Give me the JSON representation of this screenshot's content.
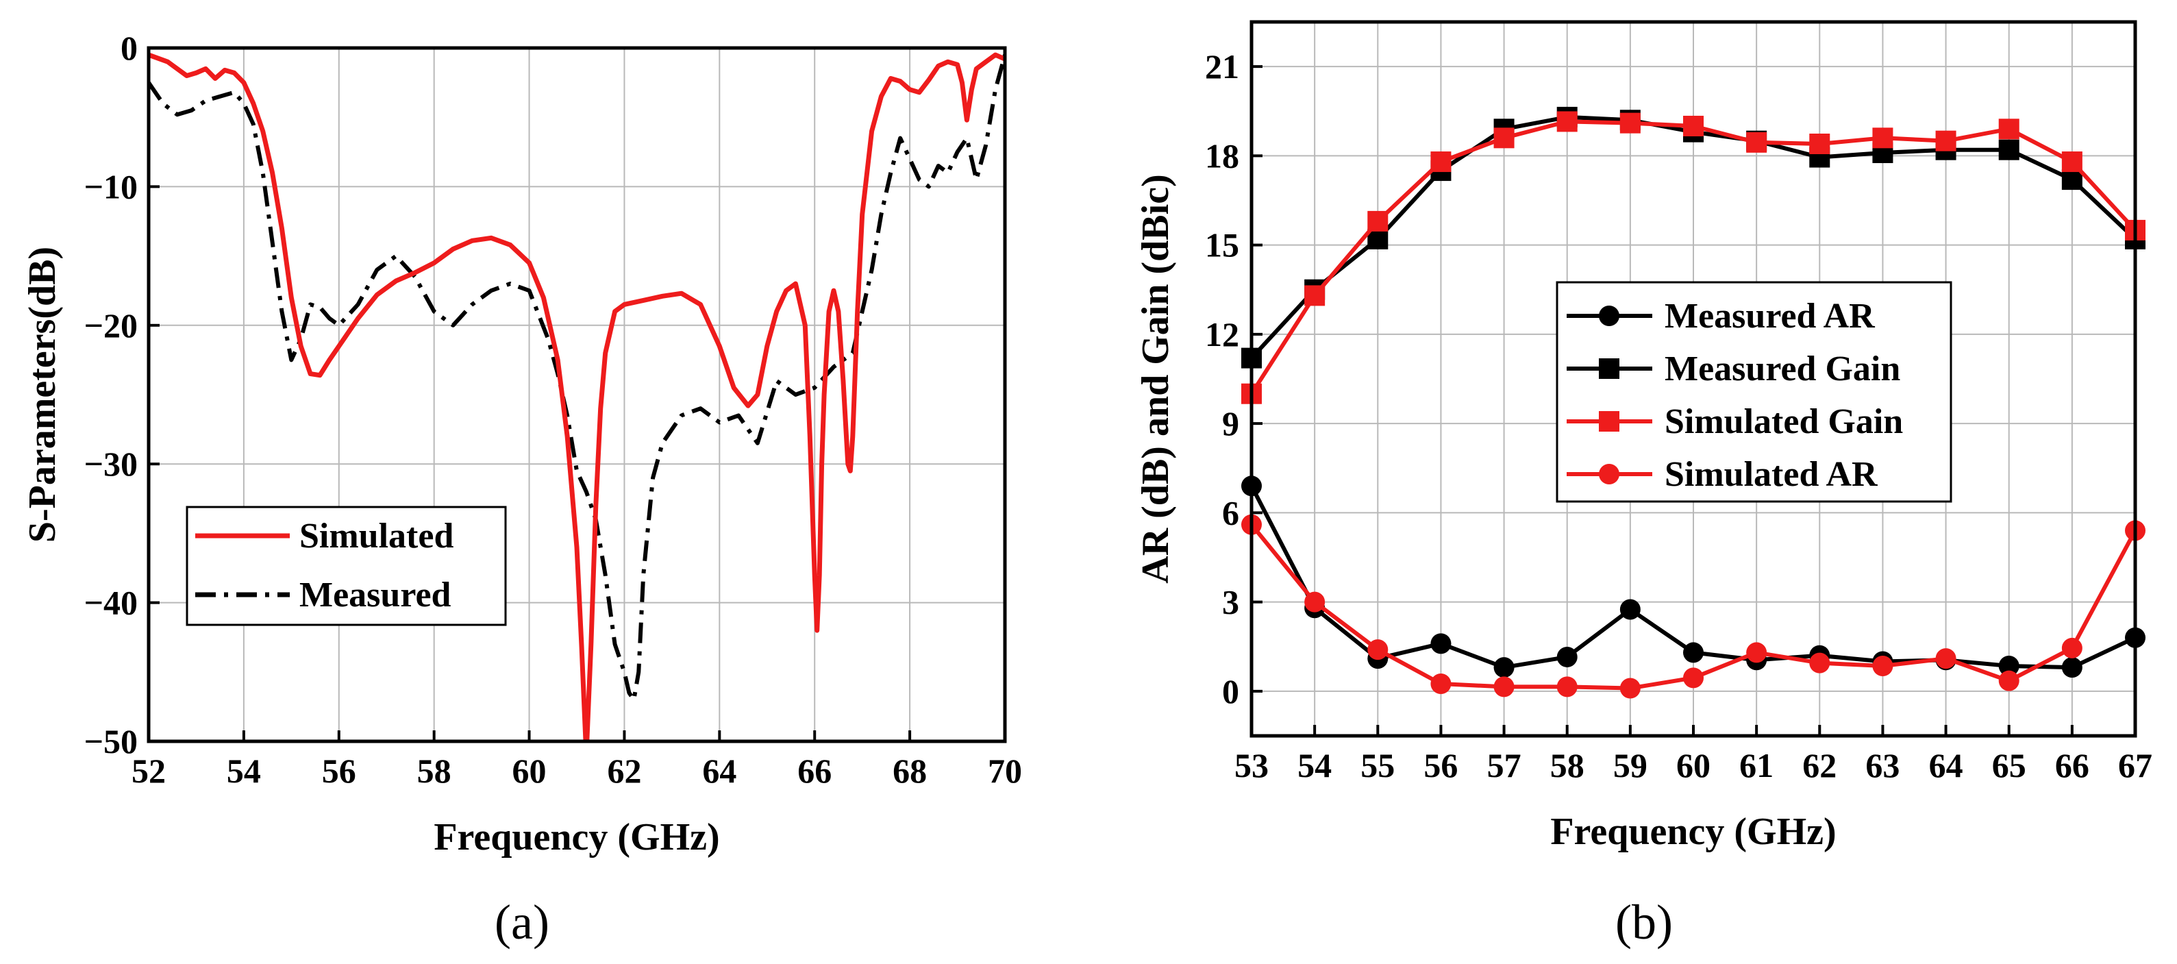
{
  "panels": [
    {
      "label": "(a)",
      "chart_data": {
        "type": "line",
        "title": "",
        "xlabel": "Frequency (GHz)",
        "ylabel": "S-Parameters(dB)",
        "xlim": [
          52,
          70
        ],
        "ylim": [
          -50,
          0
        ],
        "xticks": [
          52,
          54,
          56,
          58,
          60,
          62,
          64,
          66,
          68,
          70
        ],
        "yticks": [
          -50,
          -40,
          -30,
          -20,
          -10,
          0
        ],
        "grid": true,
        "legend_position": "bottom-left",
        "series": [
          {
            "name": "Simulated",
            "color": "#ee1c1c",
            "style": "solid",
            "x": [
              52.0,
              52.4,
              52.8,
              53.0,
              53.2,
              53.4,
              53.6,
              53.8,
              54.0,
              54.2,
              54.4,
              54.6,
              54.8,
              55.0,
              55.2,
              55.4,
              55.6,
              55.8,
              56.0,
              56.4,
              56.8,
              57.2,
              57.6,
              58.0,
              58.4,
              58.8,
              59.2,
              59.6,
              60.0,
              60.3,
              60.6,
              60.8,
              61.0,
              61.1,
              61.2,
              61.3,
              61.4,
              61.5,
              61.6,
              61.8,
              62.0,
              62.4,
              62.8,
              63.2,
              63.6,
              64.0,
              64.3,
              64.6,
              64.8,
              65.0,
              65.2,
              65.4,
              65.6,
              65.8,
              65.9,
              66.0,
              66.05,
              66.1,
              66.15,
              66.2,
              66.3,
              66.4,
              66.5,
              66.6,
              66.7,
              66.75,
              66.8,
              66.9,
              67.0,
              67.2,
              67.4,
              67.6,
              67.8,
              68.0,
              68.2,
              68.4,
              68.6,
              68.8,
              69.0,
              69.1,
              69.2,
              69.3,
              69.4,
              69.6,
              69.8,
              70.0
            ],
            "y": [
              -0.5,
              -1,
              -2,
              -1.8,
              -1.5,
              -2.2,
              -1.6,
              -1.8,
              -2.5,
              -4,
              -6,
              -9,
              -13,
              -18,
              -21.5,
              -23.5,
              -23.6,
              -22.5,
              -21.5,
              -19.5,
              -17.8,
              -16.8,
              -16.2,
              -15.5,
              -14.5,
              -13.9,
              -13.7,
              -14.2,
              -15.5,
              -18,
              -22.5,
              -28,
              -36,
              -43,
              -51,
              -43,
              -33,
              -26,
              -22,
              -19,
              -18.5,
              -18.2,
              -17.9,
              -17.7,
              -18.5,
              -21.5,
              -24.5,
              -25.8,
              -25,
              -21.5,
              -19,
              -17.5,
              -17,
              -20,
              -28,
              -38,
              -42,
              -38,
              -30,
              -25,
              -19,
              -17.5,
              -19,
              -24,
              -30,
              -30.5,
              -28,
              -19,
              -12,
              -6,
              -3.5,
              -2.2,
              -2.4,
              -3,
              -3.2,
              -2.3,
              -1.3,
              -1,
              -1.2,
              -2.5,
              -5.2,
              -3,
              -1.5,
              -1,
              -0.5,
              -0.8
            ]
          },
          {
            "name": "Measured",
            "color": "#000000",
            "style": "dashdot",
            "x": [
              52.0,
              52.3,
              52.6,
              52.9,
              53.2,
              53.5,
              53.8,
              54.0,
              54.2,
              54.4,
              54.6,
              54.8,
              55.0,
              55.2,
              55.4,
              55.6,
              55.8,
              56.0,
              56.4,
              56.8,
              57.2,
              57.6,
              58.0,
              58.4,
              58.8,
              59.2,
              59.6,
              60.0,
              60.4,
              60.6,
              60.8,
              61.0,
              61.2,
              61.4,
              61.6,
              61.8,
              62.0,
              62.1,
              62.2,
              62.3,
              62.4,
              62.6,
              62.8,
              63.2,
              63.6,
              64.0,
              64.4,
              64.8,
              65.2,
              65.6,
              66.0,
              66.4,
              66.8,
              67.2,
              67.4,
              67.6,
              67.8,
              68.0,
              68.2,
              68.4,
              68.6,
              68.8,
              69.0,
              69.2,
              69.4,
              69.6,
              69.8,
              70.0
            ],
            "y": [
              -2.5,
              -4,
              -4.8,
              -4.5,
              -3.8,
              -3.5,
              -3.2,
              -4,
              -5.5,
              -9,
              -14,
              -19,
              -22.5,
              -21,
              -18.5,
              -18.7,
              -19.5,
              -20,
              -18.5,
              -16,
              -15,
              -16.5,
              -19,
              -20,
              -18.5,
              -17.5,
              -17,
              -17.5,
              -21,
              -23.5,
              -26.5,
              -30.5,
              -32,
              -34,
              -38,
              -43,
              -45,
              -46.5,
              -47,
              -45,
              -38,
              -31,
              -28.5,
              -26.5,
              -26,
              -27,
              -26.5,
              -28.5,
              -24,
              -25,
              -24.5,
              -23,
              -22,
              -16,
              -12,
              -9,
              -6.5,
              -8,
              -9.5,
              -10,
              -8.5,
              -9,
              -7.5,
              -6.5,
              -9.5,
              -7,
              -3,
              -0.5
            ]
          }
        ]
      }
    },
    {
      "label": "(b)",
      "chart_data": {
        "type": "line",
        "title": "",
        "xlabel": "Frequency (GHz)",
        "ylabel": "AR (dB) and Gain (dBic)",
        "xlim": [
          53,
          67
        ],
        "ylim": [
          -1.5,
          22.5
        ],
        "x": [
          53,
          54,
          55,
          56,
          57,
          58,
          59,
          60,
          61,
          62,
          63,
          64,
          65,
          66,
          67
        ],
        "xticks": [
          53,
          54,
          55,
          56,
          57,
          58,
          59,
          60,
          61,
          62,
          63,
          64,
          65,
          66,
          67
        ],
        "yticks": [
          0,
          3,
          6,
          9,
          12,
          15,
          18,
          21
        ],
        "grid": true,
        "legend_position": "center",
        "series": [
          {
            "name": "Measured AR",
            "color": "#000000",
            "marker": "circle",
            "values": [
              6.9,
              2.8,
              1.1,
              1.6,
              0.8,
              1.15,
              2.75,
              1.3,
              1.05,
              1.2,
              1.0,
              1.05,
              0.85,
              0.8,
              1.8
            ]
          },
          {
            "name": "Measured Gain",
            "color": "#000000",
            "marker": "square",
            "values": [
              11.2,
              13.5,
              15.2,
              17.5,
              18.9,
              19.3,
              19.2,
              18.8,
              18.5,
              17.95,
              18.1,
              18.2,
              18.2,
              17.2,
              15.2
            ]
          },
          {
            "name": "Simulated Gain",
            "color": "#ee1c1c",
            "marker": "square",
            "values": [
              10.0,
              13.3,
              15.8,
              17.8,
              18.6,
              19.15,
              19.1,
              19.0,
              18.45,
              18.4,
              18.6,
              18.5,
              18.9,
              17.8,
              15.5
            ]
          },
          {
            "name": "Simulated AR",
            "color": "#ee1c1c",
            "marker": "circle",
            "values": [
              5.6,
              3.0,
              1.4,
              0.25,
              0.15,
              0.15,
              0.1,
              0.45,
              1.3,
              0.95,
              0.85,
              1.1,
              0.35,
              1.45,
              5.4
            ]
          }
        ]
      }
    }
  ]
}
